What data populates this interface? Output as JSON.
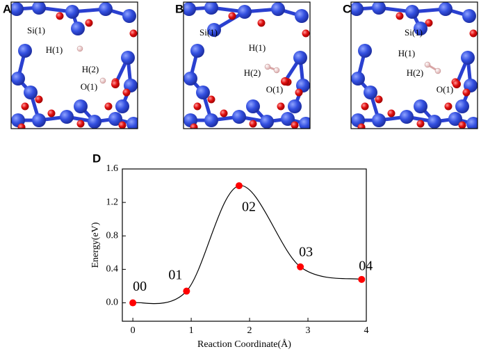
{
  "panels": [
    {
      "label": "A",
      "atoms": [
        "Si(1)",
        "H(1)",
        "H(2)",
        "O(1)"
      ]
    },
    {
      "label": "B",
      "atoms": [
        "Si(1)",
        "H(1)",
        "H(2)",
        "O(1)"
      ]
    },
    {
      "label": "C",
      "atoms": [
        "Si(1)",
        "H(1)",
        "H(2)",
        "O(1)"
      ]
    }
  ],
  "chart_data": {
    "type": "line",
    "label": "D",
    "x": [
      0,
      0.92,
      1.82,
      2.87,
      3.92
    ],
    "series": [
      {
        "color": "#ff0000",
        "values": [
          0,
          0.14,
          1.4,
          0.43,
          0.28
        ],
        "value_labels": [
          "00",
          "01",
          "02",
          "03",
          "04"
        ]
      }
    ],
    "xlabel": "Reaction Coordinate(Å)",
    "ylabel": "Energy(eV)",
    "xlim": [
      -0.18,
      4.0
    ],
    "ylim": [
      -0.22,
      1.6
    ],
    "xticks": [
      0,
      1,
      2,
      3,
      4
    ],
    "yticks": [
      {
        "value": 0,
        "label": "0.0"
      },
      0.4,
      0.8,
      1.2,
      1.6
    ]
  }
}
